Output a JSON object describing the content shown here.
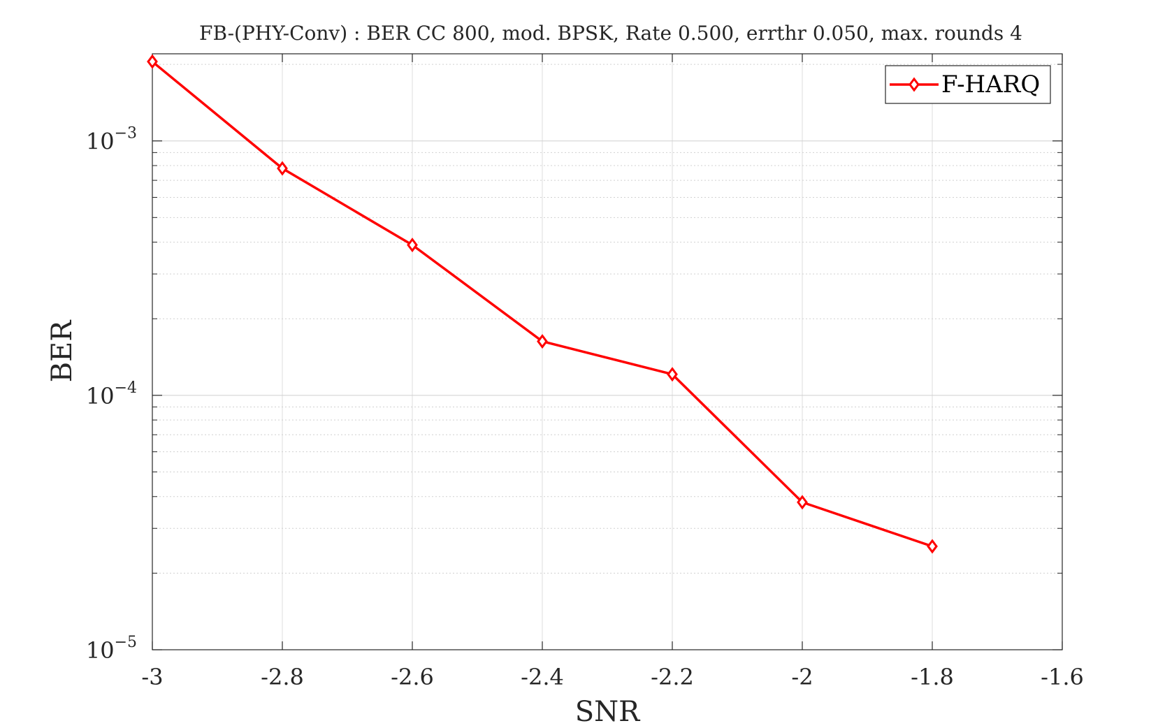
{
  "chart_data": {
    "type": "line",
    "title": "FB-(PHY-Conv) : BER CC 800, mod. BPSK, Rate 0.500, errthr 0.050, max. rounds 4",
    "xlabel": "SNR",
    "ylabel": "BER",
    "xlim": [
      -3,
      -1.6
    ],
    "ylim": [
      1e-05,
      0.0022
    ],
    "yscale": "log",
    "xticks": [
      -3,
      -2.8,
      -2.6,
      -2.4,
      -2.2,
      -2,
      -1.8,
      -1.6
    ],
    "xtick_labels": [
      "-3",
      "-2.8",
      "-2.6",
      "-2.4",
      "-2.2",
      "-2",
      "-1.8",
      "-1.6"
    ],
    "yticks": [
      {
        "value": 0.001,
        "base": "10",
        "exp": "−3"
      },
      {
        "value": 0.0001,
        "base": "10",
        "exp": "−4"
      },
      {
        "value": 1e-05,
        "base": "10",
        "exp": "−5"
      }
    ],
    "grid": true,
    "legend_position": "top-right",
    "series": [
      {
        "name": "F-HARQ",
        "color": "#ff0000",
        "marker": "diamond",
        "x": [
          -3,
          -2.8,
          -2.6,
          -2.4,
          -2.2,
          -2,
          -1.8
        ],
        "y": [
          0.00205,
          0.00078,
          0.00039,
          0.000163,
          0.000121,
          3.8e-05,
          2.55e-05
        ]
      }
    ]
  }
}
